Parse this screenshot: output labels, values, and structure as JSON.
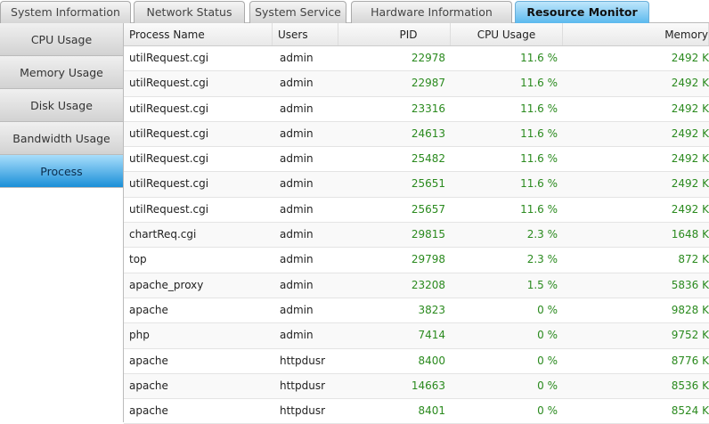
{
  "tabs": [
    "System Information",
    "Network Status",
    "System Service",
    "Hardware Information",
    "Resource Monitor"
  ],
  "active_tab": "Resource Monitor",
  "sidebar": [
    "CPU Usage",
    "Memory Usage",
    "Disk Usage",
    "Bandwidth Usage",
    "Process"
  ],
  "active_sidebar": "Process",
  "columns": [
    "Process Name",
    "Users",
    "PID",
    "CPU Usage",
    "Memory"
  ],
  "rows": [
    [
      "utilRequest.cgi",
      "admin",
      "22978",
      "11.6 %",
      "2492 K"
    ],
    [
      "utilRequest.cgi",
      "admin",
      "22987",
      "11.6 %",
      "2492 K"
    ],
    [
      "utilRequest.cgi",
      "admin",
      "23316",
      "11.6 %",
      "2492 K"
    ],
    [
      "utilRequest.cgi",
      "admin",
      "24613",
      "11.6 %",
      "2492 K"
    ],
    [
      "utilRequest.cgi",
      "admin",
      "25482",
      "11.6 %",
      "2492 K"
    ],
    [
      "utilRequest.cgi",
      "admin",
      "25651",
      "11.6 %",
      "2492 K"
    ],
    [
      "utilRequest.cgi",
      "admin",
      "25657",
      "11.6 %",
      "2492 K"
    ],
    [
      "chartReq.cgi",
      "admin",
      "29815",
      "2.3 %",
      "1648 K"
    ],
    [
      "top",
      "admin",
      "29798",
      "2.3 %",
      "872 K"
    ],
    [
      "apache_proxy",
      "admin",
      "23208",
      "1.5 %",
      "5836 K"
    ],
    [
      "apache",
      "admin",
      "3823",
      "0 %",
      "9828 K"
    ],
    [
      "php",
      "admin",
      "7414",
      "0 %",
      "9752 K"
    ],
    [
      "apache",
      "httpdusr",
      "8400",
      "0 %",
      "8776 K"
    ],
    [
      "apache",
      "httpdusr",
      "14663",
      "0 %",
      "8536 K"
    ],
    [
      "apache",
      "httpdusr",
      "8401",
      "0 %",
      "8524 K"
    ]
  ],
  "colors": {
    "accent": "#5cb9ee",
    "value_text": "#2a8a1e"
  }
}
